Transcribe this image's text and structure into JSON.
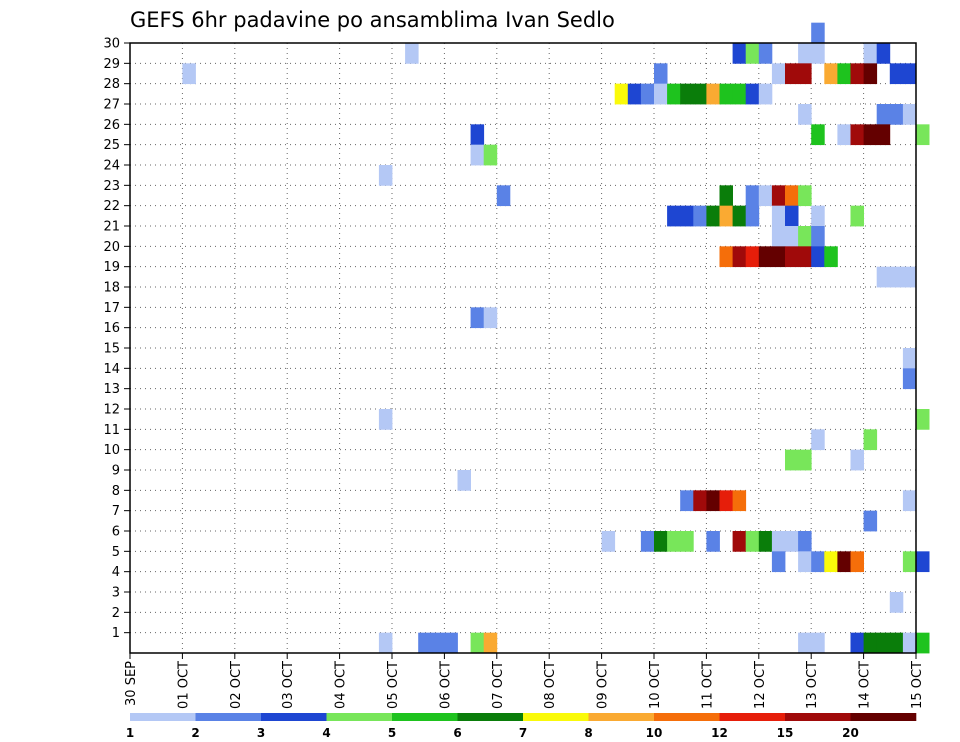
{
  "chart_data": {
    "type": "heatmap",
    "title": "GEFS 6hr padavine po ansamblima Ivan Sedlo",
    "xlabel": "",
    "ylabel": "",
    "x_tick_labels": [
      "30 SEP",
      "01 OCT",
      "02 OCT",
      "03 OCT",
      "04 OCT",
      "05 OCT",
      "06 OCT",
      "07 OCT",
      "08 OCT",
      "09 OCT",
      "10 OCT",
      "11 OCT",
      "12 OCT",
      "13 OCT",
      "14 OCT",
      "15 OCT"
    ],
    "y_tick_labels": [
      "1",
      "2",
      "3",
      "4",
      "5",
      "6",
      "7",
      "8",
      "9",
      "10",
      "11",
      "12",
      "13",
      "14",
      "15",
      "16",
      "17",
      "18",
      "19",
      "20",
      "21",
      "22",
      "23",
      "24",
      "25",
      "26",
      "27",
      "28",
      "29",
      "30"
    ],
    "x_range_days": [
      0,
      15
    ],
    "y_range": [
      0,
      30
    ],
    "step_hours": 6,
    "grid": "dotted",
    "legend": {
      "position": "bottom",
      "labels": [
        "1",
        "2",
        "3",
        "4",
        "5",
        "6",
        "7",
        "8",
        "10",
        "12",
        "15",
        "20"
      ],
      "colors": [
        "#b4c8f5",
        "#5a82e6",
        "#1e46d2",
        "#78e65a",
        "#1ec31e",
        "#0a7d0a",
        "#fafa0a",
        "#faaa32",
        "#f56e0a",
        "#e61e0a",
        "#a00a0a",
        "#640000"
      ]
    },
    "cells_note": "each cell: [member, time step (6h) from 00Z 30 SEP, precipitation class 1-12]",
    "cells": [
      [
        30,
        52,
        2
      ],
      [
        29,
        21,
        1
      ],
      [
        29,
        46,
        3
      ],
      [
        29,
        47,
        4
      ],
      [
        29,
        48,
        2
      ],
      [
        29,
        51,
        1
      ],
      [
        29,
        52,
        1
      ],
      [
        29,
        56,
        1
      ],
      [
        29,
        57,
        3
      ],
      [
        28,
        4,
        1
      ],
      [
        28,
        40,
        2
      ],
      [
        28,
        49,
        1
      ],
      [
        28,
        50,
        11
      ],
      [
        28,
        51,
        11
      ],
      [
        28,
        53,
        8
      ],
      [
        28,
        54,
        5
      ],
      [
        28,
        55,
        11
      ],
      [
        28,
        56,
        12
      ],
      [
        28,
        58,
        3
      ],
      [
        28,
        59,
        3
      ],
      [
        27,
        37,
        7
      ],
      [
        27,
        38,
        3
      ],
      [
        27,
        39,
        2
      ],
      [
        27,
        40,
        1
      ],
      [
        27,
        41,
        5
      ],
      [
        27,
        42,
        6
      ],
      [
        27,
        43,
        6
      ],
      [
        27,
        44,
        8
      ],
      [
        27,
        45,
        5
      ],
      [
        27,
        46,
        5
      ],
      [
        27,
        47,
        3
      ],
      [
        27,
        48,
        1
      ],
      [
        26,
        51,
        1
      ],
      [
        26,
        57,
        2
      ],
      [
        26,
        58,
        2
      ],
      [
        26,
        59,
        1
      ],
      [
        25,
        26,
        3
      ],
      [
        25,
        52,
        5
      ],
      [
        25,
        54,
        1
      ],
      [
        25,
        55,
        11
      ],
      [
        25,
        56,
        12
      ],
      [
        25,
        57,
        12
      ],
      [
        25,
        60,
        4
      ],
      [
        24,
        26,
        1
      ],
      [
        24,
        27,
        4
      ],
      [
        23,
        19,
        1
      ],
      [
        22,
        28,
        2
      ],
      [
        22,
        45,
        6
      ],
      [
        22,
        47,
        2
      ],
      [
        22,
        48,
        1
      ],
      [
        22,
        49,
        11
      ],
      [
        22,
        50,
        9
      ],
      [
        22,
        51,
        4
      ],
      [
        21,
        41,
        3
      ],
      [
        21,
        42,
        3
      ],
      [
        21,
        43,
        2
      ],
      [
        21,
        44,
        6
      ],
      [
        21,
        45,
        8
      ],
      [
        21,
        46,
        6
      ],
      [
        21,
        47,
        2
      ],
      [
        21,
        49,
        1
      ],
      [
        21,
        50,
        3
      ],
      [
        21,
        52,
        1
      ],
      [
        21,
        55,
        4
      ],
      [
        20,
        49,
        1
      ],
      [
        20,
        50,
        1
      ],
      [
        20,
        51,
        4
      ],
      [
        20,
        52,
        2
      ],
      [
        19,
        45,
        9
      ],
      [
        19,
        46,
        11
      ],
      [
        19,
        47,
        10
      ],
      [
        19,
        48,
        12
      ],
      [
        19,
        49,
        12
      ],
      [
        19,
        50,
        11
      ],
      [
        19,
        51,
        11
      ],
      [
        19,
        52,
        3
      ],
      [
        19,
        53,
        5
      ],
      [
        18,
        57,
        1
      ],
      [
        18,
        58,
        1
      ],
      [
        18,
        59,
        1
      ],
      [
        16,
        26,
        2
      ],
      [
        16,
        27,
        1
      ],
      [
        14,
        59,
        1
      ],
      [
        13,
        59,
        2
      ],
      [
        11,
        19,
        1
      ],
      [
        11,
        60,
        4
      ],
      [
        10,
        52,
        1
      ],
      [
        10,
        56,
        4
      ],
      [
        9,
        50,
        4
      ],
      [
        9,
        51,
        4
      ],
      [
        9,
        55,
        1
      ],
      [
        8,
        25,
        1
      ],
      [
        7,
        42,
        2
      ],
      [
        7,
        43,
        11
      ],
      [
        7,
        44,
        12
      ],
      [
        7,
        45,
        10
      ],
      [
        7,
        46,
        9
      ],
      [
        7,
        59,
        1
      ],
      [
        6,
        56,
        2
      ],
      [
        5,
        36,
        1
      ],
      [
        5,
        39,
        2
      ],
      [
        5,
        40,
        6
      ],
      [
        5,
        41,
        4
      ],
      [
        5,
        42,
        4
      ],
      [
        5,
        44,
        2
      ],
      [
        5,
        46,
        11
      ],
      [
        5,
        47,
        4
      ],
      [
        5,
        48,
        6
      ],
      [
        5,
        49,
        1
      ],
      [
        5,
        50,
        1
      ],
      [
        5,
        51,
        2
      ],
      [
        4,
        49,
        2
      ],
      [
        4,
        51,
        1
      ],
      [
        4,
        52,
        2
      ],
      [
        4,
        53,
        7
      ],
      [
        4,
        54,
        12
      ],
      [
        4,
        55,
        9
      ],
      [
        4,
        59,
        4
      ],
      [
        4,
        60,
        3
      ],
      [
        2,
        58,
        1
      ],
      [
        0,
        19,
        1
      ],
      [
        0,
        22,
        2
      ],
      [
        0,
        23,
        2
      ],
      [
        0,
        24,
        2
      ],
      [
        0,
        26,
        4
      ],
      [
        0,
        27,
        8
      ],
      [
        0,
        51,
        1
      ],
      [
        0,
        52,
        1
      ],
      [
        0,
        55,
        3
      ],
      [
        0,
        56,
        6
      ],
      [
        0,
        57,
        6
      ],
      [
        0,
        58,
        6
      ],
      [
        0,
        59,
        1
      ],
      [
        0,
        60,
        5
      ]
    ]
  }
}
